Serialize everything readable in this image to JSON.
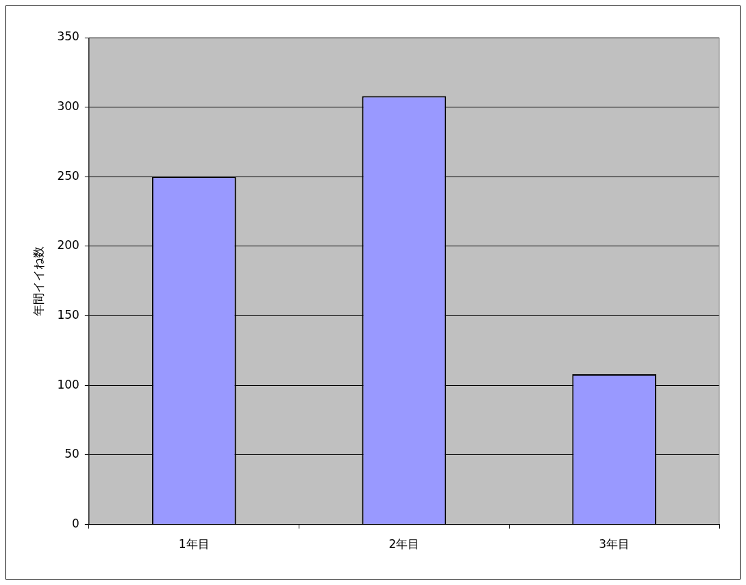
{
  "chart_data": {
    "type": "bar",
    "ylabel": "年間イイね数",
    "categories": [
      "1年目",
      "2年目",
      "3年目"
    ],
    "values": [
      250,
      308,
      108
    ],
    "color": "#9999ff",
    "ylim": [
      0,
      350
    ],
    "yticks": [
      0,
      50,
      100,
      150,
      200,
      250,
      300,
      350
    ],
    "grid": "y",
    "legend": false
  }
}
